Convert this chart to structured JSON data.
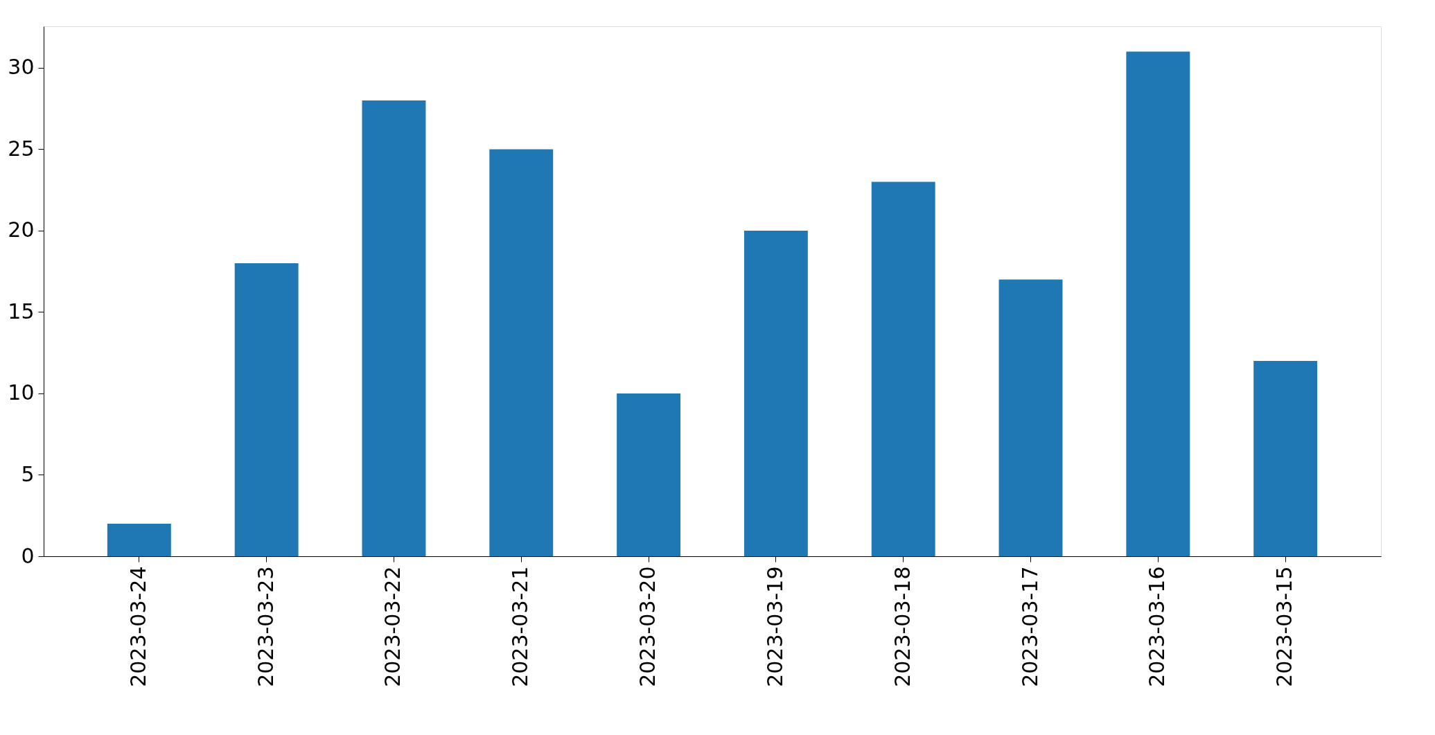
{
  "chart_data": {
    "type": "bar",
    "categories": [
      "2023-03-24",
      "2023-03-23",
      "2023-03-22",
      "2023-03-21",
      "2023-03-20",
      "2023-03-19",
      "2023-03-18",
      "2023-03-17",
      "2023-03-16",
      "2023-03-15"
    ],
    "values": [
      2,
      18,
      28,
      25,
      10,
      20,
      23,
      17,
      31,
      12
    ],
    "color": "#1f77b4",
    "ylim": [
      0,
      32.55
    ],
    "yticks": [
      0,
      5,
      10,
      15,
      20,
      25,
      30
    ],
    "grid": false
  }
}
